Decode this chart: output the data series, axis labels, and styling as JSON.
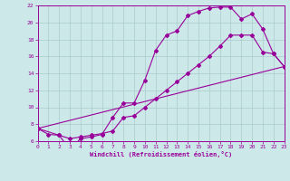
{
  "xlabel": "Windchill (Refroidissement éolien,°C)",
  "xlim": [
    0,
    23
  ],
  "ylim": [
    6,
    22
  ],
  "xticks": [
    0,
    1,
    2,
    3,
    4,
    5,
    6,
    7,
    8,
    9,
    10,
    11,
    12,
    13,
    14,
    15,
    16,
    17,
    18,
    19,
    20,
    21,
    22,
    23
  ],
  "yticks": [
    6,
    8,
    10,
    12,
    14,
    16,
    18,
    20,
    22
  ],
  "bg_color": "#cce8e8",
  "line_color": "#990099",
  "grid_color": "#aacccc",
  "line1_x": [
    0,
    1,
    2,
    3,
    4,
    5,
    6,
    7,
    8,
    9,
    10,
    11,
    12,
    13,
    14,
    15,
    16,
    17,
    18,
    19,
    20,
    21,
    22,
    23
  ],
  "line1_y": [
    7.5,
    6.8,
    6.7,
    5.0,
    6.3,
    6.5,
    6.8,
    8.8,
    10.5,
    10.5,
    13.2,
    16.7,
    18.5,
    19.0,
    20.8,
    21.3,
    21.7,
    21.8,
    21.8,
    20.4,
    21.0,
    19.2,
    16.3,
    14.8
  ],
  "line2_x": [
    0,
    2,
    3,
    4,
    5,
    6,
    7,
    8,
    9,
    10,
    11,
    12,
    13,
    14,
    15,
    16,
    17,
    18,
    19,
    20,
    21,
    22,
    23
  ],
  "line2_y": [
    7.5,
    6.7,
    6.3,
    6.5,
    6.7,
    6.9,
    7.2,
    8.8,
    9.0,
    10.0,
    11.0,
    12.0,
    13.0,
    14.0,
    15.0,
    16.0,
    17.2,
    18.5,
    18.5,
    18.5,
    16.5,
    16.3,
    14.8
  ],
  "line3_x": [
    0,
    23
  ],
  "line3_y": [
    7.5,
    14.8
  ]
}
